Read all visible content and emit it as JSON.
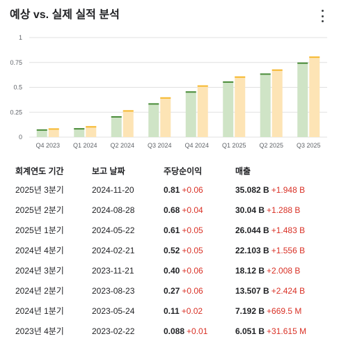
{
  "header": {
    "title": "예상 vs. 실제 실적 분석",
    "more_icon": "more-vert-icon"
  },
  "colors": {
    "actual": "#cfe4c6",
    "actual_top": "#4a8c3a",
    "estimate": "#fde4b5",
    "estimate_top": "#f6b930",
    "positive": "#d93025",
    "grid": "#e0e0e0"
  },
  "chart_data": {
    "type": "bar",
    "categories": [
      "Q4 2023",
      "Q1 2024",
      "Q2 2024",
      "Q3 2024",
      "Q4 2024",
      "Q1 2025",
      "Q2 2025",
      "Q3 2025"
    ],
    "series": [
      {
        "values": [
          0.088,
          0.11,
          0.27,
          0.4,
          0.52,
          0.61,
          0.68,
          0.81
        ]
      },
      {
        "values": [
          0.078,
          0.09,
          0.21,
          0.34,
          0.46,
          0.56,
          0.64,
          0.75
        ]
      }
    ],
    "yticks": [
      "0",
      "0.25",
      "0.5",
      "0.75",
      "1"
    ],
    "ylim": [
      0,
      1
    ],
    "grid": true
  },
  "table": {
    "headers": [
      "회계연도 기간",
      "보고 날짜",
      "주당순이익",
      "매출"
    ],
    "rows": [
      {
        "period": "2025년 3분기",
        "date": "2024-11-20",
        "eps": "0.81",
        "eps_diff": "+0.06",
        "revenue": "35.082 B",
        "revenue_diff": "+1.948 B"
      },
      {
        "period": "2025년 2분기",
        "date": "2024-08-28",
        "eps": "0.68",
        "eps_diff": "+0.04",
        "revenue": "30.04 B",
        "revenue_diff": "+1.288 B"
      },
      {
        "period": "2025년 1분기",
        "date": "2024-05-22",
        "eps": "0.61",
        "eps_diff": "+0.05",
        "revenue": "26.044 B",
        "revenue_diff": "+1.483 B"
      },
      {
        "period": "2024년 4분기",
        "date": "2024-02-21",
        "eps": "0.52",
        "eps_diff": "+0.05",
        "revenue": "22.103 B",
        "revenue_diff": "+1.556 B"
      },
      {
        "period": "2024년 3분기",
        "date": "2023-11-21",
        "eps": "0.40",
        "eps_diff": "+0.06",
        "revenue": "18.12 B",
        "revenue_diff": "+2.008 B"
      },
      {
        "period": "2024년 2분기",
        "date": "2023-08-23",
        "eps": "0.27",
        "eps_diff": "+0.06",
        "revenue": "13.507 B",
        "revenue_diff": "+2.424 B"
      },
      {
        "period": "2024년 1분기",
        "date": "2023-05-24",
        "eps": "0.11",
        "eps_diff": "+0.02",
        "revenue": "7.192 B",
        "revenue_diff": "+669.5 M"
      },
      {
        "period": "2023년 4분기",
        "date": "2023-02-22",
        "eps": "0.088",
        "eps_diff": "+0.01",
        "revenue": "6.051 B",
        "revenue_diff": "+31.615 M"
      }
    ]
  }
}
